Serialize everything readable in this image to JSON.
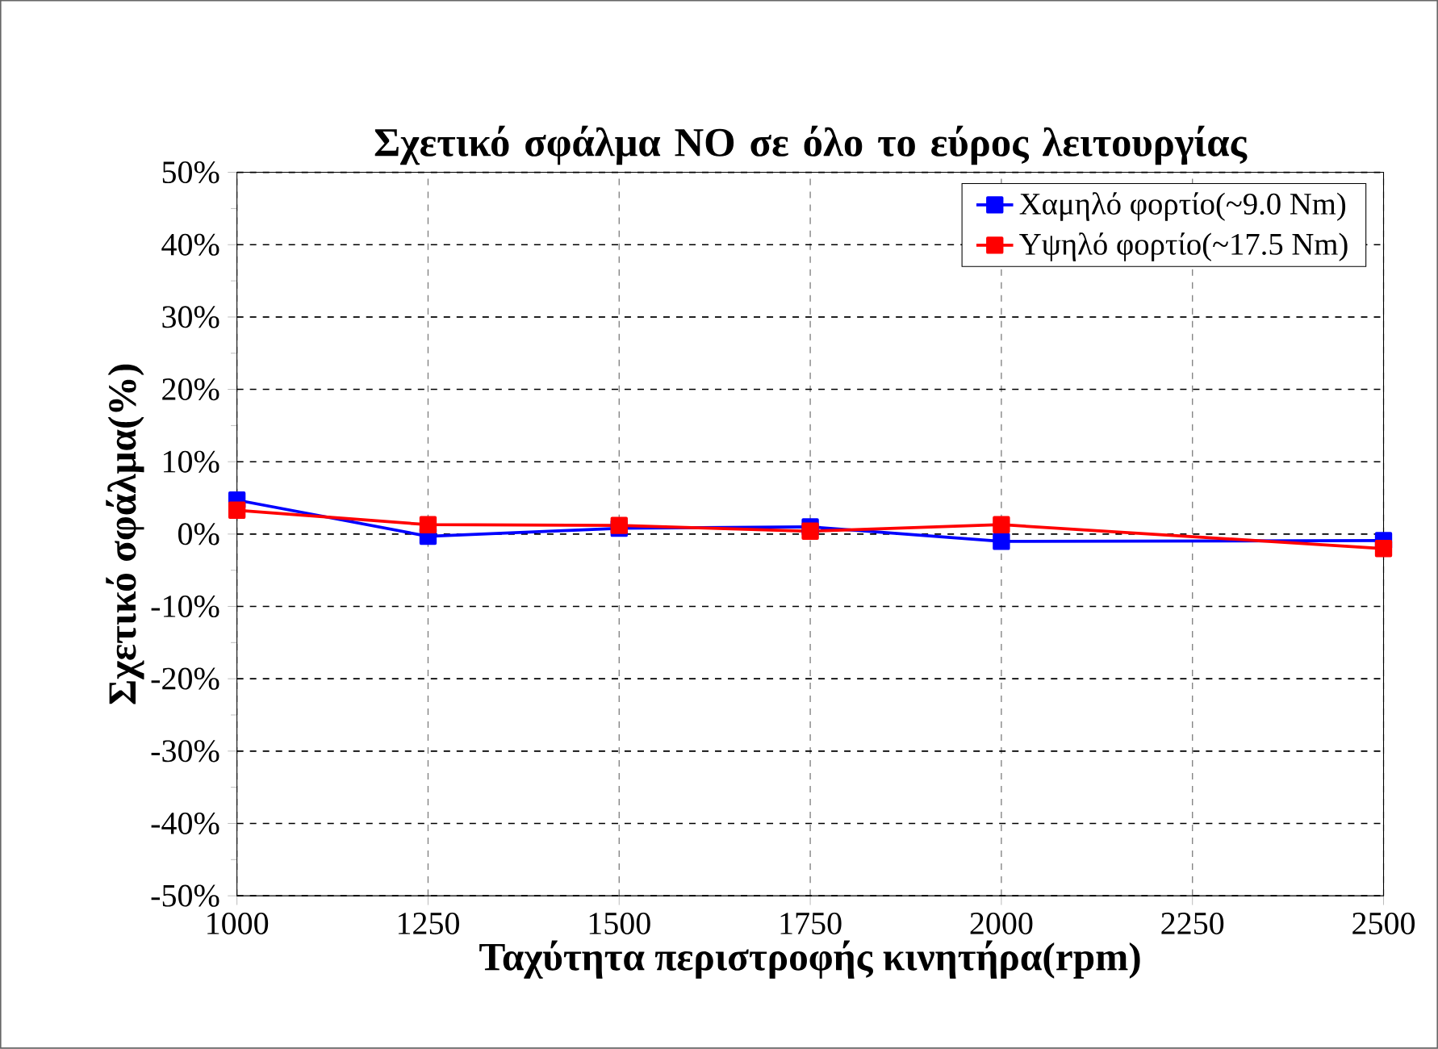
{
  "chart_data": {
    "type": "line",
    "title": "Σχετικό σφάλμα NO σε όλο το εύρος λειτουργίας",
    "xlabel": "Ταχύτητα περιστροφής κινητήρα(rpm)",
    "ylabel": "Σχετικό σφάλμα(%)",
    "x": [
      1000,
      1250,
      1500,
      1750,
      2000,
      2500
    ],
    "series": [
      {
        "name": "Χαμηλό φορτίο(~9.0 Nm)",
        "color": "#0000ff",
        "values": [
          4.7,
          -0.3,
          0.8,
          1.0,
          -1.0,
          -0.9
        ]
      },
      {
        "name": "Υψηλό φορτίο(~17.5 Nm)",
        "color": "#ff0000",
        "values": [
          3.3,
          1.3,
          1.2,
          0.4,
          1.3,
          -2.0
        ]
      }
    ],
    "xlim": [
      1000,
      2500
    ],
    "xticks": [
      1000,
      1250,
      1500,
      1750,
      2000,
      2250,
      2500
    ],
    "ylim": [
      -50,
      50
    ],
    "yticks": [
      {
        "value": -50,
        "label": "-50%"
      },
      {
        "value": -40,
        "label": "-40%"
      },
      {
        "value": -30,
        "label": "-30%"
      },
      {
        "value": -20,
        "label": "-20%"
      },
      {
        "value": -10,
        "label": "-10%"
      },
      {
        "value": 0,
        "label": "0%"
      },
      {
        "value": 10,
        "label": "10%"
      },
      {
        "value": 20,
        "label": "20%"
      },
      {
        "value": 30,
        "label": "30%"
      },
      {
        "value": 40,
        "label": "40%"
      },
      {
        "value": 50,
        "label": "50%"
      }
    ],
    "grid": true,
    "legend": "top right",
    "marker": "square",
    "line_style": "solid"
  }
}
